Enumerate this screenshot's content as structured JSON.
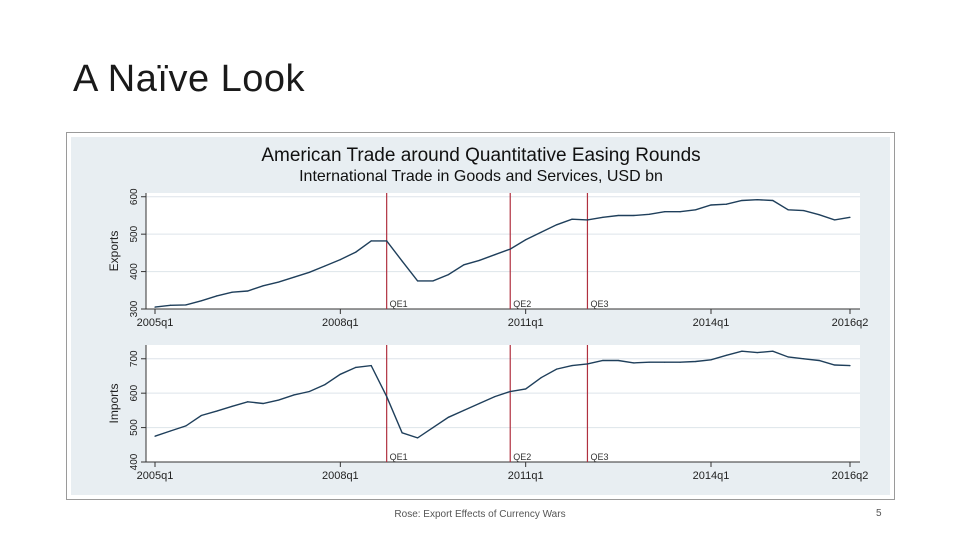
{
  "slide": {
    "title": "A Naïve Look",
    "footer": "Rose: Export Effects of Currency Wars",
    "page_number": "5"
  },
  "colors": {
    "figure_bg": "#e8eef2",
    "plot_bg": "#ffffff",
    "line": "#1f3f5b",
    "qe_line": "#b0303f",
    "grid": "#dde4ea"
  },
  "chart_data": {
    "title": "American Trade around Quantitative Easing Rounds",
    "subtitle": "International Trade in Goods and Services, USD bn",
    "type": "line",
    "x_ticks": [
      "2005q1",
      "2008q1",
      "2011q1",
      "2014q1",
      "2016q2"
    ],
    "x_tick_index": [
      0,
      12,
      24,
      36,
      45
    ],
    "qe_rounds": [
      {
        "label": "QE1",
        "index": 15
      },
      {
        "label": "QE2",
        "index": 23
      },
      {
        "label": "QE3",
        "index": 28
      }
    ],
    "panels": [
      {
        "ylabel": "Exports",
        "ylim": [
          300,
          610
        ],
        "yticks": [
          "300",
          "400",
          "500",
          "600"
        ],
        "ytick_values": [
          300,
          400,
          500,
          600
        ],
        "values": [
          305,
          310,
          311,
          322,
          335,
          345,
          348,
          362,
          372,
          385,
          398,
          415,
          432,
          452,
          482,
          482,
          428,
          375,
          375,
          392,
          418,
          430,
          445,
          460,
          485,
          505,
          525,
          540,
          538,
          545,
          550,
          550,
          553,
          560,
          560,
          565,
          578,
          580,
          590,
          592,
          590,
          565,
          563,
          552,
          538,
          545
        ]
      },
      {
        "ylabel": "Imports",
        "ylim": [
          400,
          740
        ],
        "yticks": [
          "400",
          "500",
          "600",
          "700"
        ],
        "ytick_values": [
          400,
          500,
          600,
          700
        ],
        "values": [
          475,
          490,
          505,
          535,
          548,
          562,
          575,
          570,
          580,
          595,
          605,
          625,
          655,
          675,
          680,
          590,
          485,
          470,
          500,
          530,
          550,
          570,
          590,
          605,
          612,
          645,
          670,
          680,
          685,
          695,
          695,
          688,
          690,
          690,
          690,
          692,
          697,
          710,
          722,
          718,
          722,
          705,
          700,
          695,
          682,
          680
        ]
      }
    ]
  }
}
